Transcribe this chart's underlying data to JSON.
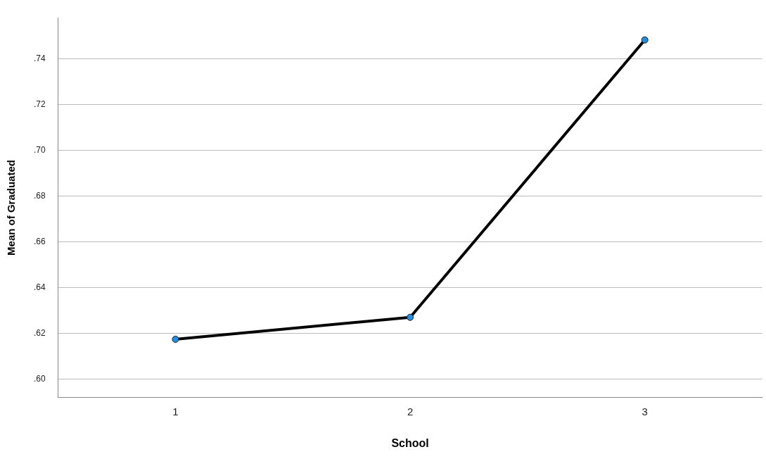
{
  "chart_data": {
    "type": "line",
    "xlabel": "School",
    "ylabel": "Mean of Graduated",
    "categories": [
      "1",
      "2",
      "3"
    ],
    "series": [
      {
        "color": "#000000",
        "values": [
          0.6175,
          0.6271,
          0.7483
        ]
      }
    ],
    "ylim": [
      0.592,
      0.758
    ],
    "yticks": [
      {
        "value": 0.6,
        "label": ".60"
      },
      {
        "value": 0.62,
        "label": ".62"
      },
      {
        "value": 0.64,
        "label": ".64"
      },
      {
        "value": 0.66,
        "label": ".66"
      },
      {
        "value": 0.68,
        "label": ".68"
      },
      {
        "value": 0.7,
        "label": ".70"
      },
      {
        "value": 0.72,
        "label": ".72"
      },
      {
        "value": 0.74,
        "label": ".74"
      }
    ],
    "grid": "y",
    "marker": "circle",
    "line_style": "solid",
    "legend": false
  }
}
